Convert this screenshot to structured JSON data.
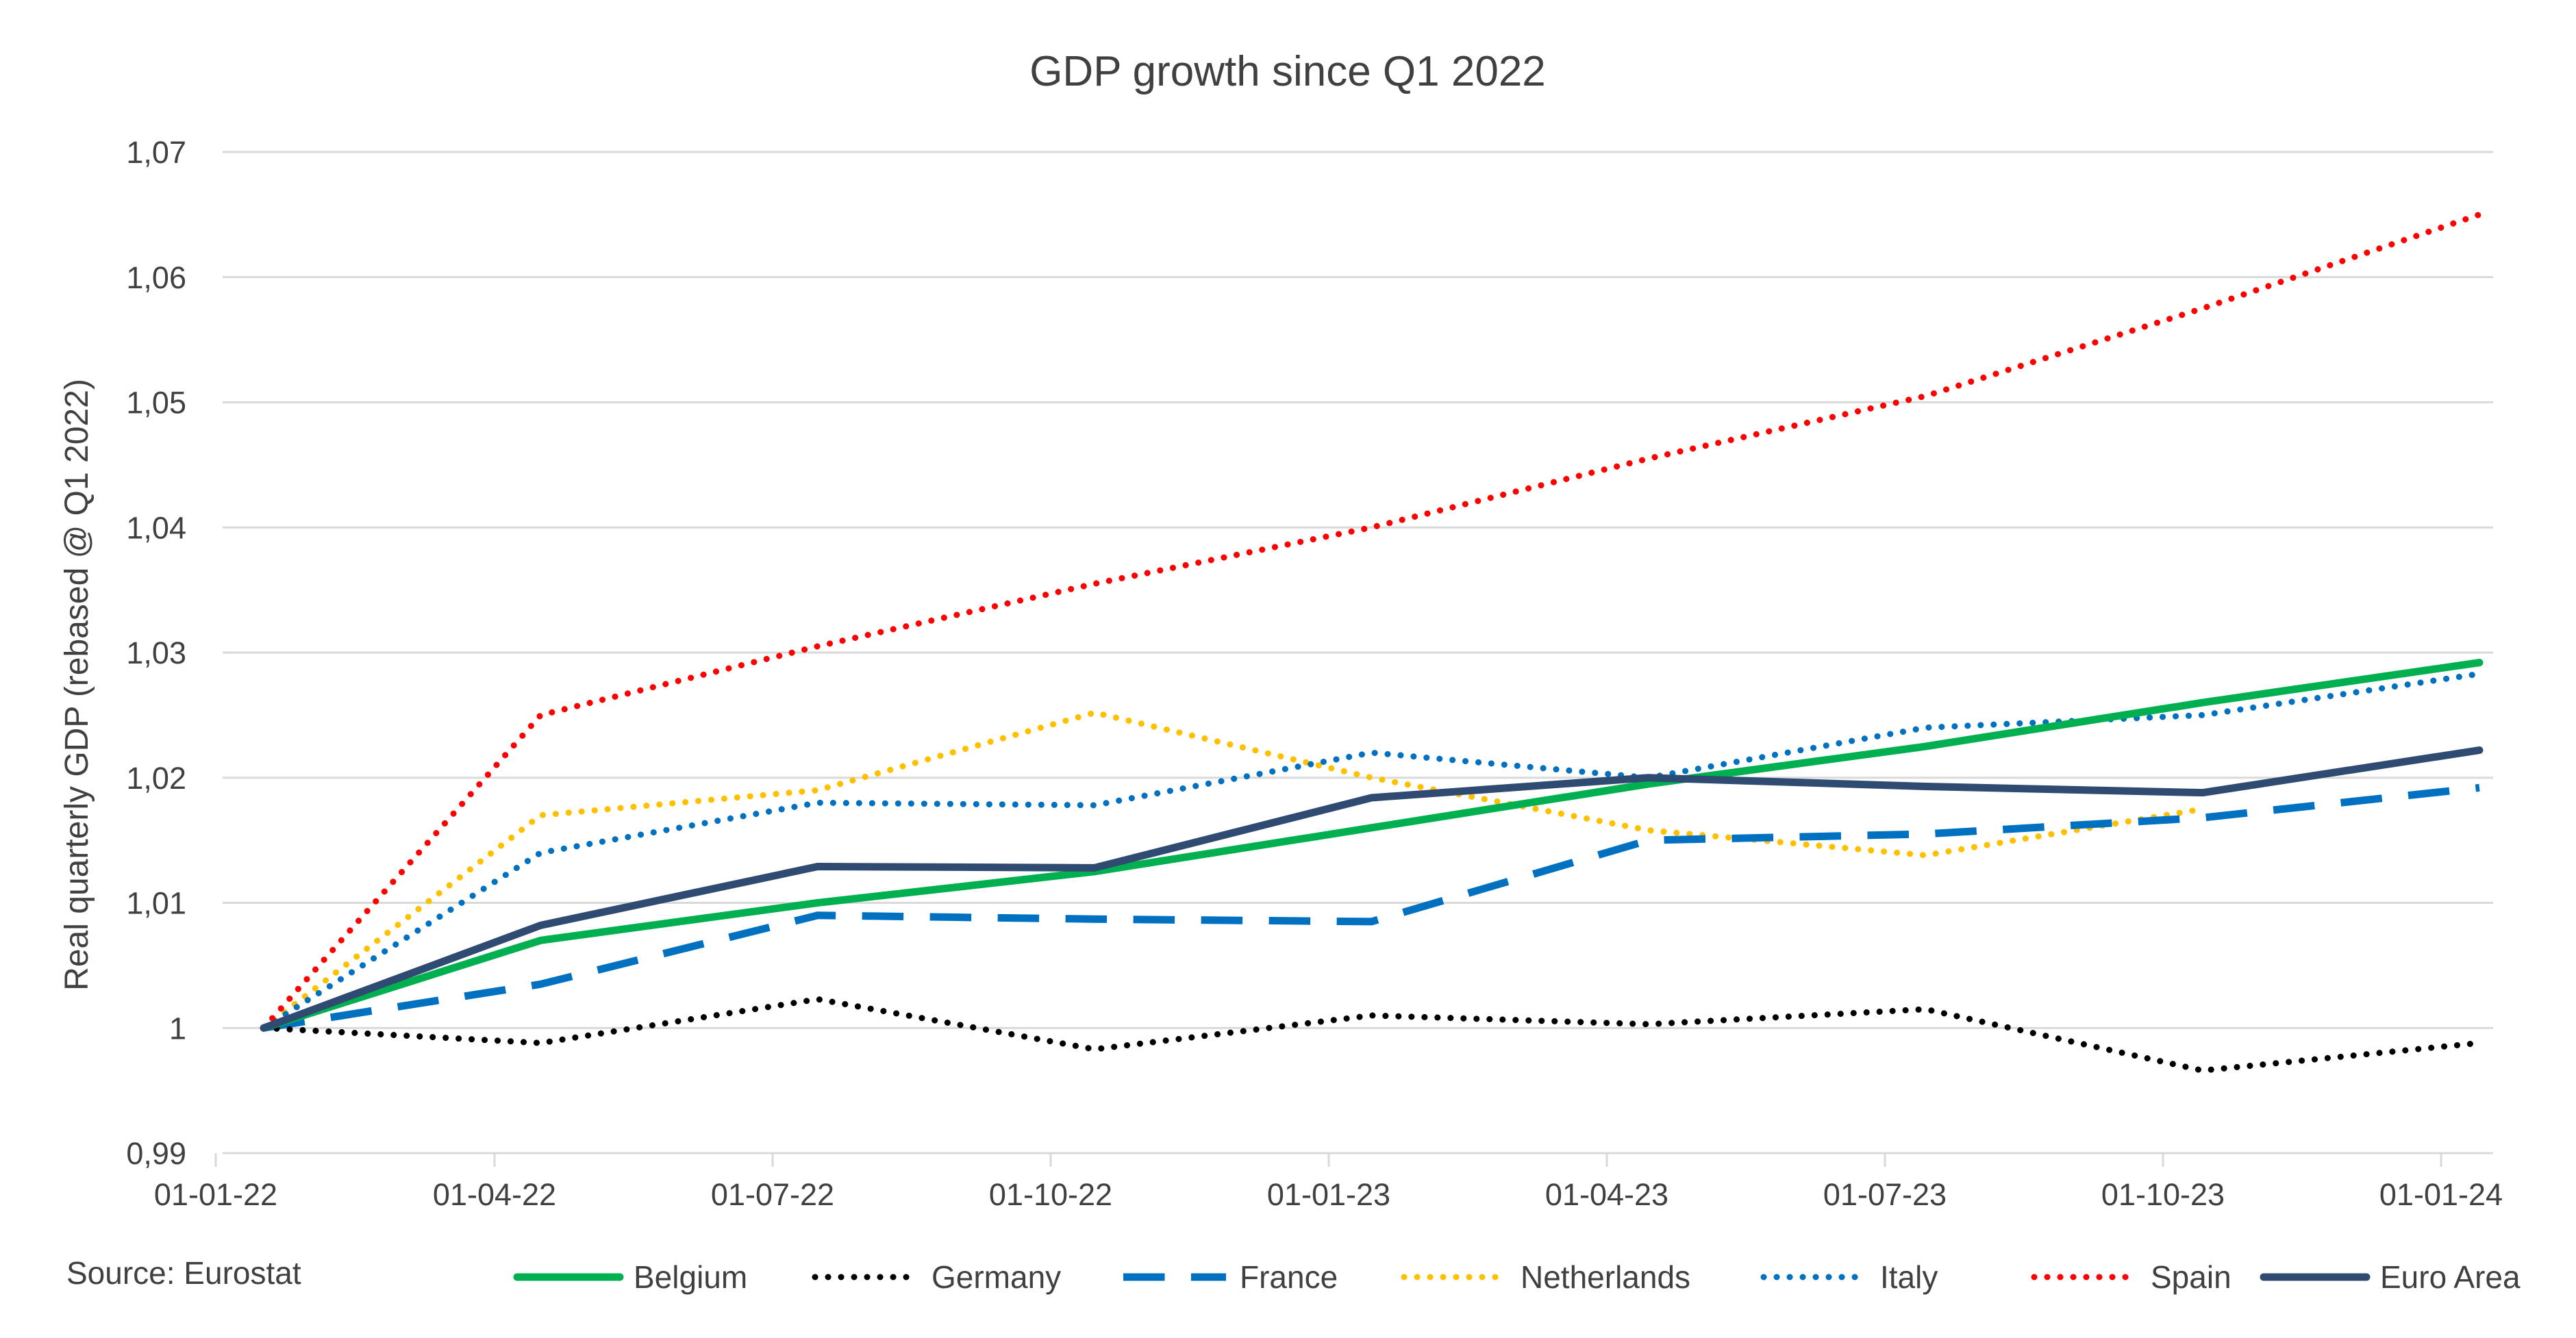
{
  "chart_data": {
    "type": "line",
    "title": "GDP growth since Q1 2022",
    "xlabel": "",
    "ylabel": "Real quarterly GDP (rebased @ Q1 2022)",
    "source": "Source: Eurostat",
    "categories": [
      "01-01-22",
      "01-04-22",
      "01-07-22",
      "01-10-22",
      "01-01-23",
      "01-04-23",
      "01-07-23",
      "01-10-23",
      "01-01-24"
    ],
    "ylim": [
      0.99,
      1.07
    ],
    "yticks": [
      "0,99",
      "1",
      "1,01",
      "1,02",
      "1,03",
      "1,04",
      "1,05",
      "1,06",
      "1,07"
    ],
    "grid": true,
    "legend_position": "bottom",
    "series": [
      {
        "name": "Belgium",
        "color": "#00B050",
        "style": "solid",
        "values": [
          1.0,
          1.007,
          1.01,
          1.0125,
          1.016,
          1.0195,
          1.0225,
          1.026,
          1.0292
        ]
      },
      {
        "name": "Germany",
        "color": "#000000",
        "style": "dotted",
        "values": [
          1.0,
          0.9988,
          1.0023,
          0.9983,
          1.001,
          1.0003,
          1.0015,
          0.9966,
          0.9988
        ]
      },
      {
        "name": "France",
        "color": "#0070C0",
        "style": "dashed",
        "values": [
          1.0,
          1.0035,
          1.009,
          1.0087,
          1.0085,
          1.015,
          1.0155,
          1.0168,
          1.0192
        ]
      },
      {
        "name": "Netherlands",
        "color": "#FFC000",
        "style": "dotted",
        "values": [
          1.0,
          1.017,
          1.019,
          1.0252,
          1.02,
          1.0158,
          1.0138,
          1.0175,
          null
        ]
      },
      {
        "name": "Italy",
        "color": "#0070C0",
        "style": "dotted",
        "values": [
          1.0,
          1.014,
          1.018,
          1.0178,
          1.022,
          1.02,
          1.024,
          1.025,
          1.0283
        ]
      },
      {
        "name": "Spain",
        "color": "#FF0000",
        "style": "dotted",
        "values": [
          1.0,
          1.025,
          1.0305,
          1.0355,
          1.04,
          1.0455,
          1.0505,
          1.0575,
          1.065
        ]
      },
      {
        "name": "Euro Area",
        "color": "#2F4B72",
        "style": "solid",
        "values": [
          1.0,
          1.0082,
          1.0129,
          1.0128,
          1.0184,
          1.02,
          1.0193,
          1.0188,
          1.0222
        ]
      }
    ]
  }
}
